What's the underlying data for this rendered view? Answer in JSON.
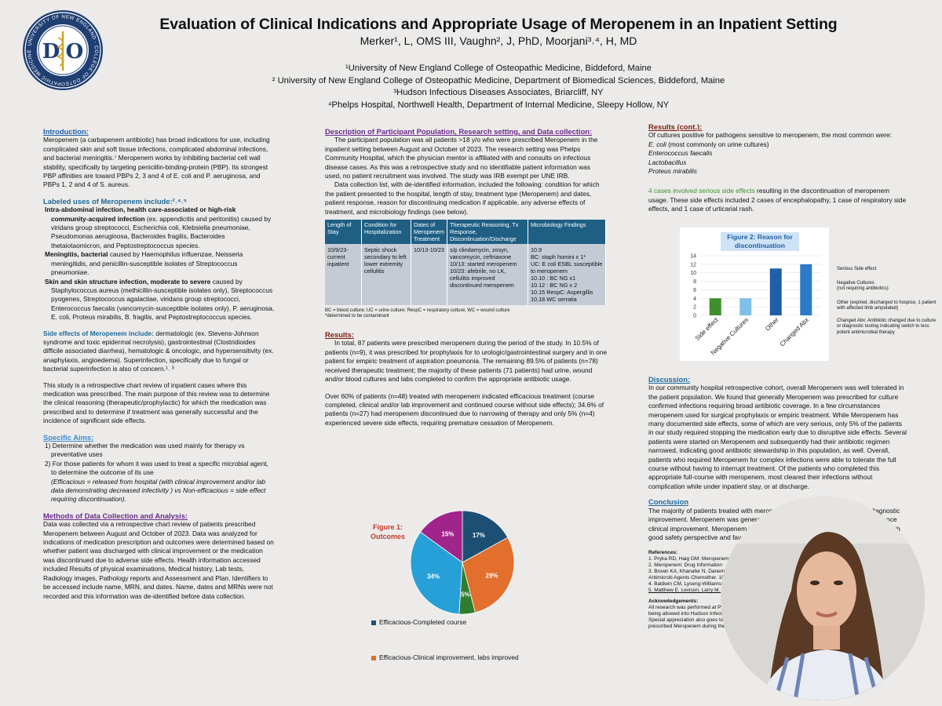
{
  "header": {
    "title": "Evaluation of Clinical Indications and Appropriate Usage of Meropenem in an Inpatient Setting",
    "authors": "Merker¹, L, OMS III, Vaughn², J, PhD, Moorjani³˒⁴, H, MD",
    "affiliations": [
      "¹University of New England College of Osteopathic Medicine, Biddeford, Maine",
      "² University of New England College of Osteopathic Medicine, Department of Biomedical Sciences, Biddeford, Maine",
      "³Hudson Infectious Diseases Associates, Briarcliff, NY",
      "⁴Phelps Hospital, Northwell Health, Department of Internal Medicine, Sleepy Hollow, NY"
    ],
    "logo_letters": [
      "D",
      "O"
    ]
  },
  "intro": {
    "heading": "Introduction:",
    "text": "Meropenem (a carbapenem antibiotic) has broad indications for use, including complicated skin and soft tissue infections, complicated abdominal infections, and bacterial meningitis.⁷ Meropenem works by inhibiting bacterial cell wall stability, specifically by targeting penicillin-binding-protein (PBP). Its strongest PBP affinities are toward PBPs 2, 3 and 4 of E. coli and P. aeruginosa, and PBPs 1, 2 and 4 of S. aureus."
  },
  "labeled": {
    "heading": "Labeled uses of Meropenem include:²˒⁴˒⁵",
    "items": [
      {
        "lead": "Intra-abdominal infection, health care-associated or high-risk community-acquired infection",
        "rest": " (ex. appendicitis and peritonitis) caused by viridans group streptococci, Escherichia coli, Klebsiella pneumoniae, Pseudomonas aeruginosa, Bacteroides fragilis, Bacteroides thetaiotaomicron, and Peptostreptococcus species."
      },
      {
        "lead": "Meningitis, bacterial",
        "rest": " caused by Haemophilus influenzae, Neisseria meningitidis, and penicillin-susceptible isolates of Streptococcus pneumoniae."
      },
      {
        "lead": "Skin and skin structure infection, moderate to severe",
        "rest": " caused by Staphylococcus aureus (methicillin-susceptible isolates only), Streptococcus pyogenes, Streptococcus agalactiae, viridans group streptococci, Enterococcus faecalis (vancomycin-susceptible isolates only), P. aeruginosa, E. coli, Proteus mirabilis, B. fragilis, and Peptostreptococcus species."
      }
    ]
  },
  "side_effects": {
    "heading": "Side effects of Meropenem include:",
    "text": " dermatologic (ex. Stevens-Johnson syndrome and toxic epidermal necrolysis), gastrointestinal (Clostridioides difficile associated diarrhea), hematologic & oncologic, and hypersensitivity (ex. anaphylaxis, angioedema). Superinfection, specifically due to fungal or bacterial superinfection is also of concern.¹˒ ³"
  },
  "study_text": "This study is a retrospective chart review of inpatient cases where this medication was prescribed. The main purpose of this review was to determine the clinical reasoning (therapeutic/prophylactic) for which the medication was prescribed and to determine if treatment was generally successful and the incidence of significant side effects.",
  "aims": {
    "heading": "Specific Aims:",
    "items": [
      "1)  Determine whether the medication was used mainly for therapy vs preventative uses",
      "2)  For those patients for whom it was used to treat a specific microbial agent, to determine the outcome of its use"
    ],
    "note": "(Efficacious = released from hospital (with clinical improvement and/or lab data demonstrating decreased infectivity ) vs Non-efficacious = side effect requiring discontinuation)."
  },
  "methods": {
    "heading": "Methods of Data Collection and Analysis:",
    "text": "Data was collected via a retrospective chart review of patients prescribed Meropenem between August and October of 2023.  Data was analyzed for indications of medication prescription and outcomes were determined based on whether patient was discharged with clinical improvement or the medication was discontinued due to adverse side effects. Health information accessed included Results of physical examinations, Medical history, Lab tests, Radiology images, Pathology reports and Assessment and Plan. Identifiers to be accessed include name, MRN, and dates.  Name, dates and MRNs were not recorded and this information was de-identified before data collection."
  },
  "population": {
    "heading": "Description of Participant Population, Research setting, and Data collection:",
    "p1": "The participant population was all patients >18 y/o who were prescribed Meropenem in the inpatient setting between August and October of 2023. The research setting was Phelps Community Hospital, which the physician mentor is affiliated with and consults on infectious disease cases.  As this was a retrospective study and no identifiable patient information was used, no patient recruitment was involved. The study was IRB exempt per UNE IRB.",
    "p2": "Data collection list, with de-identified information, included the following: condition for which the patient presented to the hospital, length of stay, treatment type (Meropenem) and dates, patient response, reason for discontinuing medication if applicable, any adverse effects of treatment, and microbiology findings (see below).",
    "table": {
      "headers": [
        "Length of Stay",
        "Condition for Hospitalization",
        "Dates of Meropenem Treatment",
        "Therapeutic Reasoning, Tx Response, Discontinuation/Discharge",
        "Microbiology Findings"
      ],
      "row": [
        "10/9/23- current inpatient",
        "Septic shock secondary to left lower extremity cellulitis",
        "10/13-10/23",
        "s/p clindamycin, zosyn, vancomycin, ceftriaxone\n10/13: started meropenem\n10/23: afebrile, no LK, cellulitis improved discontinued meropenem",
        "10.9\nBC: staph homini x 1*\nUC: E coli ESBL susceptible to meropenem\n10.10 : BC NG x1\n10.12 : BC NG x 2\n10.15 RespC: Aspergillis\n10.18 WC serratia"
      ]
    },
    "table_note": "BC = blood culture; UC = urine culture; RespC = respiratory culture; WC = wound culture\n*determined to be contaminant"
  },
  "results": {
    "heading": "Results:",
    "p1": "In total, 87 patients were prescribed meropenem during the period of the study. In 10.5% of patients (n=9), it was prescribed for prophylaxis for to urologic/gastrointestinal surgery and in one patient for empiric treatment of aspiration pneumonia. The remaining 89.5% of patients (n=78) received therapeutic treatment; the majority of these patients (71 patients) had urine, wound and/or blood cultures and labs completed to confirm the appropriate antibiotic usage.",
    "p2": "Over 60% of patients (n=48) treated with meropenem indicated efficacious treatment (course completed, clinical and/or lab improvement and continued course without side effects); 34.6% of patients (n=27) had meropenem discontinued due to narrowing of therapy and only 5% (n=4) experienced severe side effects, requiring premature cessation of Meropenem."
  },
  "chart_data": [
    {
      "type": "pie",
      "title": "Figure 1: Outcomes",
      "categories": [
        "Efficacious-Completed course",
        "Efficacious-Clinical improvement, labs improved",
        "",
        "",
        ""
      ],
      "values": [
        17,
        29,
        5,
        34,
        15
      ],
      "labels": [
        "17%",
        "29%",
        "5%",
        "34%",
        "15%"
      ],
      "colors": [
        "#1d4f74",
        "#e26f2c",
        "#2f7d2f",
        "#27a0d8",
        "#a1238c"
      ],
      "legend_visible": [
        "Efficacious-Completed course",
        "Efficacious-Clinical improvement, labs improved"
      ]
    },
    {
      "type": "bar",
      "title": "Figure 2: Reason for discontinuation",
      "categories": [
        "Side effect",
        "Negative Cultures",
        "Other",
        "Changed Abx"
      ],
      "values": [
        4,
        4,
        11,
        12
      ],
      "colors": [
        "#3f8f2d",
        "#7fc0e6",
        "#1f5fa8",
        "#2d7bc8"
      ],
      "ylim": [
        0,
        14
      ],
      "yticks": [
        0,
        2,
        4,
        6,
        8,
        10,
        12,
        14
      ]
    }
  ],
  "fig2_side_notes": [
    "Serious Side effect",
    "Negative Cultures\n(not requiring antibiotics)",
    "Other (expired, discharged to hospice, 1 patient with affected limb amputated)",
    "Changed Abx: Antibiotic changed due to culture or diagnostic testing indicating switch to less potent antimicrobial therapy"
  ],
  "results_cont": {
    "heading": "Results (cont.):",
    "intro": "Of cultures positive for pathogens sensitive to meropenem, the most common were:",
    "organisms": [
      "E. coli",
      "Enterococcus faecalis",
      "Lactobacillus",
      "Proteus mirabilis"
    ],
    "ecoli_note": " (most commonly on urine cultures)",
    "side_lead": "4 cases involved serious side effects",
    "side_rest": " resulting in the discontinuation of meropenem usage.  These side effects included 2 cases of encephalopathy, 1 case of respiratory side effects, and 1 case of urticarial rash."
  },
  "discussion": {
    "heading": "Discussion:",
    "text": "In our community hospital retrospective cohort, overall Meropenem was well tolerated in the patient population. We found that generally Meropenem was prescribed for culture confirmed infections requiring broad antibiotic coverage. In a few circumstances meropenem used for surgical prophylaxis or empiric treatment. While Meropenem has many documented side effects, some of which are very serious, only 5% of the patients in our study required stopping the medication early due to disruptive side effects. Several patients were started on Meropenem and subsequently had their antibiotic regimen narrowed, indicating good antibiotic stewardship in this population, as well. Overall, patients who required Meropenem for complex infections were able to tolerate the full course without having to interrupt treatment. Of the patients who completed this appropriate full-course with meropenem, most cleared their infections without complication while under inpatient stay, or at discharge."
  },
  "conclusion": {
    "heading": "Conclusion",
    "text": "The majority of patients treated with meropenem had positive culture and/or diagnostic improvement. Meropenem was generally well tolerated. Many patients did experience clinical improvement. Meropenem was generally used within accepted indications, with good safety perspective and favorable antibiotic stewardship."
  },
  "references": {
    "heading": "References:",
    "items": [
      "1. Pryka RD, Haig GM: Meropenem. Ann Pharmacother. 1994 Sep;28(9):1045-54.",
      "2. Meropenem: Drug Information",
      "3. Brown KA, Khanafer N, Daneman N. Meta-analysis of antibiotics and associated Clostridium difficile infection. Antimicrob Agents Chemother. 10.1128/AAC.02176-12. Epub",
      "4. Baldwin CM, Lyseng-Williamson KA. Meropenem: a review of its use in bacterial infections. Drugs. 2008",
      "5. Matthew E. Levison, Larry M. Bush. Infectious Diseases (Eighth Edition)"
    ]
  },
  "ack": {
    "heading": "Acknowledgements:",
    "text": "All research was performed at Phelps Hospital under the direction of Dr. Moorjani to  I am extremely grateful for being allowed into Hudson Infectious Diseases. I additionally thank Dr. Vaughn who advised me in data analysis. Special appreciation also goes to Dr. Maureen Obrien, clinical pharmacist, for providing lists of patients who were prescribed Meropenem during the dates in question."
  }
}
